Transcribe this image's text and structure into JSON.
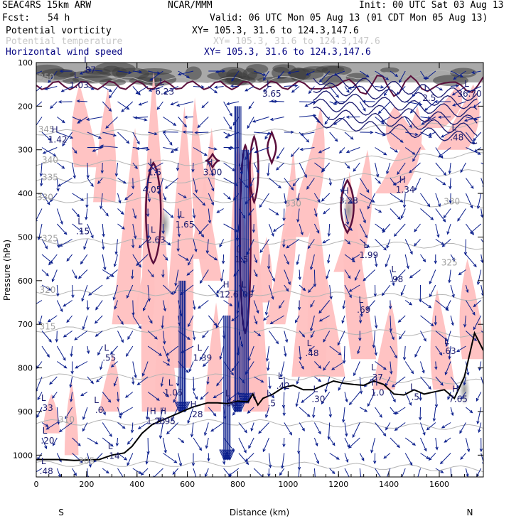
{
  "header": {
    "model": "SEAC4RS 15km ARW",
    "org": "NCAR/MMM",
    "init": "Init: 00 UTC Sat 03 Aug 13",
    "fcst_label": "Fcst:",
    "fcst_value": "54 h",
    "valid": "Valid: 06 UTC Mon 05 Aug 13 (01 CDT Mon 05 Aug 13)",
    "fields": [
      {
        "name": "Potential vorticity",
        "xy": "XY= 105.3, 31.6 to 124.3,147.6",
        "color": "#000000"
      },
      {
        "name": "Potential temperature",
        "xy": "XY= 105.3, 31.6 to 124.3,147.6",
        "color": "#c8c8c8"
      },
      {
        "name": "Horizontal wind speed",
        "xy": "XY= 105.3, 31.6 to 124.3,147.6",
        "color": "#000080"
      }
    ]
  },
  "colors": {
    "pv_shading": "#ffc0c0",
    "pv_contour": "#5a0f3c",
    "theta": "#b4b4b4",
    "wind": "#0a1e8c",
    "terrain": "#000000",
    "strat_shading": "#606060"
  },
  "chart_data": {
    "type": "cross-section",
    "xlabel": "Distance (km)",
    "ylabel": "Pressure (hPa)",
    "x_ticks": [
      0,
      200,
      400,
      600,
      800,
      1000,
      1200,
      1400,
      1600
    ],
    "xlim": [
      0,
      1775
    ],
    "y_ticks": [
      100,
      200,
      300,
      400,
      500,
      600,
      700,
      800,
      900,
      1000
    ],
    "ylim": [
      1050,
      100
    ],
    "end_labels": {
      "left": "S",
      "right": "N"
    },
    "theta_labels": [
      {
        "text": "350",
        "x": 40,
        "p": 140
      },
      {
        "text": "345",
        "x": 40,
        "p": 260
      },
      {
        "text": "340",
        "x": 55,
        "p": 330
      },
      {
        "text": "335",
        "x": 55,
        "p": 370
      },
      {
        "text": "330",
        "x": 35,
        "p": 415
      },
      {
        "text": "325",
        "x": 55,
        "p": 510
      },
      {
        "text": "320",
        "x": 45,
        "p": 628
      },
      {
        "text": "315",
        "x": 45,
        "p": 712
      },
      {
        "text": "310",
        "x": 120,
        "p": 925
      },
      {
        "text": "305",
        "x": 200,
        "p": 1020
      },
      {
        "text": "330",
        "x": 1020,
        "p": 430
      },
      {
        "text": "330",
        "x": 1650,
        "p": 425
      },
      {
        "text": "325",
        "x": 1640,
        "p": 565
      }
    ],
    "extrema": [
      {
        "kind": "L",
        "value": ".87",
        "x": 210,
        "p": 120
      },
      {
        "kind": "L",
        "value": "1.03",
        "x": 170,
        "p": 155
      },
      {
        "kind": "H",
        "value": "1.42",
        "x": 85,
        "p": 280
      },
      {
        "kind": "L",
        "value": "6.23",
        "x": 510,
        "p": 170
      },
      {
        "kind": "L",
        "value": "1.5",
        "x": 470,
        "p": 355
      },
      {
        "kind": "L",
        "value": "4.05",
        "x": 460,
        "p": 395
      },
      {
        "kind": "H",
        "value": "3.00",
        "x": 700,
        "p": 355
      },
      {
        "kind": "L",
        "value": "3.65",
        "x": 935,
        "p": 175
      },
      {
        "kind": "L",
        "value": "1.65",
        "x": 590,
        "p": 475
      },
      {
        "kind": "L",
        "value": "2.63",
        "x": 475,
        "p": 510
      },
      {
        "kind": "L",
        "value": ".15",
        "x": 185,
        "p": 490
      },
      {
        "kind": "L",
        "value": "1.5",
        "x": 815,
        "p": 555
      },
      {
        "kind": "H",
        "value": "12.6",
        "x": 765,
        "p": 635
      },
      {
        "kind": "L",
        "value": ".09",
        "x": 835,
        "p": 635
      },
      {
        "kind": "H",
        "value": "3.28",
        "x": 1240,
        "p": 420
      },
      {
        "kind": "H",
        "value": "1.34",
        "x": 1465,
        "p": 395
      },
      {
        "kind": "L",
        "value": "1.99",
        "x": 1320,
        "p": 545
      },
      {
        "kind": "L",
        "value": ".98",
        "x": 1430,
        "p": 600
      },
      {
        "kind": "L",
        "value": ".69",
        "x": 1300,
        "p": 670
      },
      {
        "kind": "L",
        "value": "2.5",
        "x": 1560,
        "p": 185
      },
      {
        "kind": "L",
        "value": "36.70",
        "x": 1720,
        "p": 175
      },
      {
        "kind": "L",
        "value": ".48",
        "x": 1670,
        "p": 275
      },
      {
        "kind": "L",
        "value": ".55",
        "x": 290,
        "p": 780
      },
      {
        "kind": "L",
        "value": "1.39",
        "x": 660,
        "p": 780
      },
      {
        "kind": "L",
        "value": "1.05",
        "x": 545,
        "p": 860
      },
      {
        "kind": "L",
        "value": ".48",
        "x": 1095,
        "p": 770
      },
      {
        "kind": "L",
        "value": ".42",
        "x": 980,
        "p": 845
      },
      {
        "kind": "L",
        "value": ".37",
        "x": 1350,
        "p": 825
      },
      {
        "kind": "H",
        "value": "1.0",
        "x": 1355,
        "p": 860
      },
      {
        "kind": "L",
        "value": ".63",
        "x": 1640,
        "p": 765
      },
      {
        "kind": "H",
        "value": "7.65",
        "x": 1675,
        "p": 875
      },
      {
        "kind": "L",
        "value": ".5",
        "x": 1505,
        "p": 870
      },
      {
        "kind": "L",
        "value": ".30",
        "x": 1120,
        "p": 875
      },
      {
        "kind": "L",
        "value": ".6",
        "x": 250,
        "p": 900
      },
      {
        "kind": "H",
        "value": "1.23",
        "x": 475,
        "p": 925
      },
      {
        "kind": "H",
        "value": "3.95",
        "x": 515,
        "p": 925
      },
      {
        "kind": "H",
        "value": ".28",
        "x": 635,
        "p": 910
      },
      {
        "kind": "L",
        "value": ".56",
        "x": 770,
        "p": 885
      },
      {
        "kind": "L",
        "value": ".5",
        "x": 935,
        "p": 885
      },
      {
        "kind": "L",
        "value": ".33",
        "x": 40,
        "p": 895
      },
      {
        "kind": "L",
        "value": ".14",
        "x": 305,
        "p": 1005
      },
      {
        "kind": "L",
        "value": ".20",
        "x": 45,
        "p": 970
      },
      {
        "kind": "L",
        "value": ".48",
        "x": 40,
        "p": 1040
      }
    ],
    "terrain": [
      [
        0,
        1010
      ],
      [
        100,
        1010
      ],
      [
        150,
        1012
      ],
      [
        250,
        1010
      ],
      [
        300,
        1000
      ],
      [
        350,
        995
      ],
      [
        380,
        980
      ],
      [
        420,
        950
      ],
      [
        460,
        930
      ],
      [
        500,
        920
      ],
      [
        560,
        905
      ],
      [
        620,
        890
      ],
      [
        680,
        880
      ],
      [
        720,
        880
      ],
      [
        760,
        882
      ],
      [
        800,
        876
      ],
      [
        840,
        878
      ],
      [
        860,
        860
      ],
      [
        880,
        885
      ],
      [
        900,
        870
      ],
      [
        940,
        860
      ],
      [
        980,
        845
      ],
      [
        1020,
        840
      ],
      [
        1060,
        850
      ],
      [
        1100,
        850
      ],
      [
        1140,
        840
      ],
      [
        1180,
        830
      ],
      [
        1220,
        835
      ],
      [
        1260,
        838
      ],
      [
        1300,
        840
      ],
      [
        1340,
        830
      ],
      [
        1380,
        838
      ],
      [
        1420,
        860
      ],
      [
        1460,
        862
      ],
      [
        1500,
        850
      ],
      [
        1540,
        860
      ],
      [
        1580,
        855
      ],
      [
        1620,
        850
      ],
      [
        1660,
        870
      ],
      [
        1700,
        820
      ],
      [
        1740,
        720
      ],
      [
        1775,
        760
      ]
    ]
  }
}
